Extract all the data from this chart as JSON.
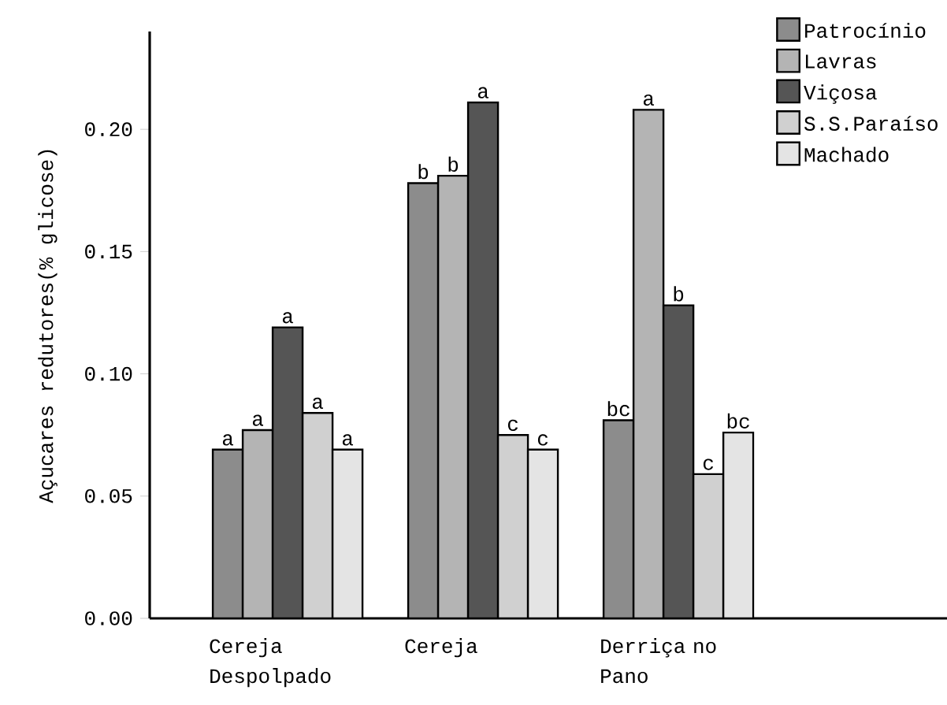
{
  "chart_data": {
    "type": "bar",
    "ylabel": "Açucares redutores(% glicose)",
    "categories": [
      "Cereja Despolpado",
      "Cereja",
      "Derriça no Pano"
    ],
    "series": [
      {
        "name": "Patrocínio",
        "color": "#8c8c8c",
        "values": [
          0.069,
          0.178,
          0.081
        ],
        "value_labels": [
          "a",
          "b",
          "bc"
        ]
      },
      {
        "name": "Lavras",
        "color": "#b4b4b4",
        "values": [
          0.077,
          0.181,
          0.208
        ],
        "value_labels": [
          "a",
          "b",
          "a"
        ]
      },
      {
        "name": "Viçosa",
        "color": "#555555",
        "values": [
          0.119,
          0.211,
          0.128
        ],
        "value_labels": [
          "a",
          "a",
          "b"
        ]
      },
      {
        "name": "S.S.Paraíso",
        "color": "#d0d0d0",
        "values": [
          0.084,
          0.075,
          0.059
        ],
        "value_labels": [
          "a",
          "c",
          "c"
        ]
      },
      {
        "name": "Machado",
        "color": "#e4e4e4",
        "values": [
          0.069,
          0.069,
          0.076
        ],
        "value_labels": [
          "a",
          "c",
          "bc"
        ]
      }
    ],
    "ylim": [
      0,
      0.24
    ],
    "yticks": [
      {
        "value": 0,
        "label": "0.00"
      },
      {
        "value": 0.05,
        "label": "0.05"
      },
      {
        "value": 0.1,
        "label": "0.10"
      },
      {
        "value": 0.15,
        "label": "0.15"
      },
      {
        "value": 0.2,
        "label": "0.20"
      }
    ],
    "legend": "top right",
    "grid": false
  }
}
